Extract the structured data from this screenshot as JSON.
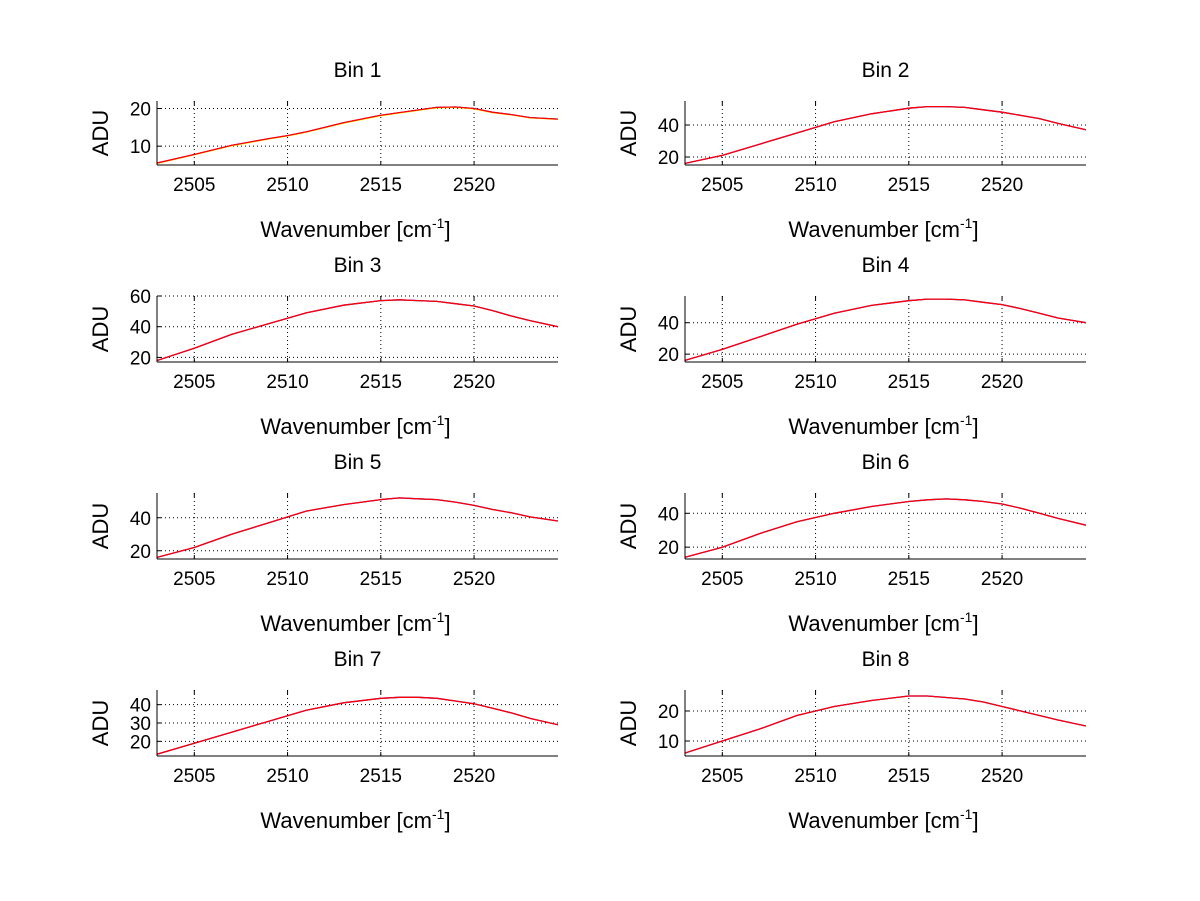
{
  "chart_data": [
    {
      "type": "line",
      "title": "Bin 1",
      "xlabel": "Wavenumber",
      "xlabel_unit": "cm",
      "xlabel_exp": "-1",
      "ylabel": "ADU",
      "xlim": [
        2503,
        2524.5
      ],
      "ylim": [
        5,
        22
      ],
      "xticks": [
        2505,
        2510,
        2515,
        2520
      ],
      "yticks": [
        10,
        20
      ],
      "grid": true,
      "series": [
        {
          "color": "#0000ff",
          "x": [
            2503,
            2505,
            2507,
            2509,
            2510,
            2511,
            2513,
            2515,
            2517,
            2518,
            2519,
            2520,
            2521,
            2522,
            2523,
            2524.5
          ],
          "y": [
            5.5,
            7.8,
            10.2,
            12,
            12.8,
            13.8,
            16.2,
            18.2,
            19.6,
            20.3,
            20.4,
            20,
            19,
            18.4,
            17.6,
            17.2
          ]
        },
        {
          "color": "#ffff00",
          "x": [
            2503,
            2505,
            2507,
            2509,
            2510,
            2511,
            2513,
            2515,
            2517,
            2518,
            2519,
            2520,
            2521,
            2522,
            2523,
            2524.5
          ],
          "y": [
            5.4,
            7.7,
            10.1,
            11.9,
            12.7,
            13.7,
            16.1,
            18.1,
            19.5,
            20.2,
            20.3,
            19.9,
            18.9,
            18.3,
            17.5,
            17.1
          ]
        },
        {
          "color": "#ff0000",
          "x": [
            2503,
            2505,
            2507,
            2509,
            2510,
            2511,
            2513,
            2515,
            2517,
            2518,
            2519,
            2520,
            2521,
            2522,
            2523,
            2524.5
          ],
          "y": [
            5.5,
            7.8,
            10.2,
            12,
            12.8,
            13.8,
            16.2,
            18.2,
            19.6,
            20.3,
            20.4,
            20,
            19,
            18.4,
            17.6,
            17.2
          ]
        }
      ]
    },
    {
      "type": "line",
      "title": "Bin 2",
      "xlabel": "Wavenumber",
      "xlabel_unit": "cm",
      "xlabel_exp": "-1",
      "ylabel": "ADU",
      "xlim": [
        2503,
        2524.5
      ],
      "ylim": [
        15,
        55
      ],
      "xticks": [
        2505,
        2510,
        2515,
        2520
      ],
      "yticks": [
        20,
        40
      ],
      "grid": true,
      "series": [
        {
          "color": "#0000ff",
          "x": [
            2503,
            2505,
            2507,
            2509,
            2511,
            2513,
            2515,
            2516,
            2517,
            2518,
            2519,
            2520,
            2521,
            2522,
            2523,
            2524.5
          ],
          "y": [
            16,
            21,
            28,
            35,
            42,
            47,
            50.5,
            51.5,
            51.5,
            51,
            49.5,
            48,
            46,
            44,
            41,
            37
          ]
        },
        {
          "color": "#ff0000",
          "x": [
            2503,
            2505,
            2507,
            2509,
            2511,
            2513,
            2515,
            2516,
            2517,
            2518,
            2519,
            2520,
            2521,
            2522,
            2523,
            2524.5
          ],
          "y": [
            16,
            21,
            28,
            35,
            42,
            47,
            50.5,
            51.5,
            51.5,
            51,
            49.5,
            48,
            46,
            44,
            41,
            37
          ]
        }
      ]
    },
    {
      "type": "line",
      "title": "Bin 3",
      "xlabel": "Wavenumber",
      "xlabel_unit": "cm",
      "xlabel_exp": "-1",
      "ylabel": "ADU",
      "xlim": [
        2503,
        2524.5
      ],
      "ylim": [
        17,
        60
      ],
      "xticks": [
        2505,
        2510,
        2515,
        2520
      ],
      "yticks": [
        20,
        40,
        60
      ],
      "grid": true,
      "series": [
        {
          "color": "#0000ff",
          "x": [
            2503,
            2505,
            2507,
            2509,
            2511,
            2513,
            2515,
            2516,
            2517,
            2518,
            2519,
            2520,
            2521,
            2522,
            2523,
            2524.5
          ],
          "y": [
            18,
            26,
            35,
            42,
            49,
            54,
            57,
            57.5,
            57,
            56.5,
            55,
            53.5,
            50.5,
            47,
            44,
            40
          ]
        },
        {
          "color": "#ff0000",
          "x": [
            2503,
            2505,
            2507,
            2509,
            2511,
            2513,
            2515,
            2516,
            2517,
            2518,
            2519,
            2520,
            2521,
            2522,
            2523,
            2524.5
          ],
          "y": [
            18,
            26,
            35,
            42,
            49,
            54,
            57,
            57.5,
            57,
            56.5,
            55,
            53.5,
            50.5,
            47,
            44,
            40
          ]
        }
      ]
    },
    {
      "type": "line",
      "title": "Bin 4",
      "xlabel": "Wavenumber",
      "xlabel_unit": "cm",
      "xlabel_exp": "-1",
      "ylabel": "ADU",
      "xlim": [
        2503,
        2524.5
      ],
      "ylim": [
        15,
        57
      ],
      "xticks": [
        2505,
        2510,
        2515,
        2520
      ],
      "yticks": [
        20,
        40
      ],
      "grid": true,
      "series": [
        {
          "color": "#0000ff",
          "x": [
            2503,
            2505,
            2507,
            2509,
            2511,
            2513,
            2515,
            2516,
            2517,
            2518,
            2519,
            2520,
            2521,
            2522,
            2523,
            2524.5
          ],
          "y": [
            16,
            23,
            31,
            39,
            46,
            51,
            54,
            55,
            55,
            54.5,
            53,
            51.5,
            49,
            46,
            43,
            40
          ]
        },
        {
          "color": "#ff0000",
          "x": [
            2503,
            2505,
            2507,
            2509,
            2511,
            2513,
            2515,
            2516,
            2517,
            2518,
            2519,
            2520,
            2521,
            2522,
            2523,
            2524.5
          ],
          "y": [
            16,
            23,
            31,
            39,
            46,
            51,
            54,
            55,
            55,
            54.5,
            53,
            51.5,
            49,
            46,
            43,
            40
          ]
        }
      ]
    },
    {
      "type": "line",
      "title": "Bin 5",
      "xlabel": "Wavenumber",
      "xlabel_unit": "cm",
      "xlabel_exp": "-1",
      "ylabel": "ADU",
      "xlim": [
        2503,
        2524.5
      ],
      "ylim": [
        15,
        55
      ],
      "xticks": [
        2505,
        2510,
        2515,
        2520
      ],
      "yticks": [
        20,
        40
      ],
      "grid": true,
      "series": [
        {
          "color": "#0000ff",
          "x": [
            2503,
            2505,
            2507,
            2509,
            2511,
            2513,
            2515,
            2516,
            2517,
            2518,
            2519,
            2520,
            2521,
            2522,
            2523,
            2524.5
          ],
          "y": [
            16,
            22,
            30,
            37,
            44,
            48,
            51,
            52,
            51.5,
            51,
            49.5,
            47.5,
            45,
            43,
            40.5,
            38
          ]
        },
        {
          "color": "#ff0000",
          "x": [
            2503,
            2505,
            2507,
            2509,
            2511,
            2513,
            2515,
            2516,
            2517,
            2518,
            2519,
            2520,
            2521,
            2522,
            2523,
            2524.5
          ],
          "y": [
            16,
            22,
            30,
            37,
            44,
            48,
            51,
            52,
            51.5,
            51,
            49.5,
            47.5,
            45,
            43,
            40.5,
            38
          ]
        }
      ]
    },
    {
      "type": "line",
      "title": "Bin 6",
      "xlabel": "Wavenumber",
      "xlabel_unit": "cm",
      "xlabel_exp": "-1",
      "ylabel": "ADU",
      "xlim": [
        2503,
        2524.5
      ],
      "ylim": [
        13,
        52
      ],
      "xticks": [
        2505,
        2510,
        2515,
        2520
      ],
      "yticks": [
        20,
        40
      ],
      "grid": true,
      "series": [
        {
          "color": "#0000ff",
          "x": [
            2503,
            2505,
            2507,
            2509,
            2511,
            2513,
            2515,
            2516,
            2517,
            2518,
            2519,
            2520,
            2521,
            2522,
            2523,
            2524.5
          ],
          "y": [
            14,
            20,
            28,
            35,
            40,
            44,
            47,
            48,
            48.5,
            48,
            47,
            45.5,
            43,
            40,
            37,
            33
          ]
        },
        {
          "color": "#ff0000",
          "x": [
            2503,
            2505,
            2507,
            2509,
            2511,
            2513,
            2515,
            2516,
            2517,
            2518,
            2519,
            2520,
            2521,
            2522,
            2523,
            2524.5
          ],
          "y": [
            14,
            20,
            28,
            35,
            40,
            44,
            47,
            48,
            48.5,
            48,
            47,
            45.5,
            43,
            40,
            37,
            33
          ]
        }
      ]
    },
    {
      "type": "line",
      "title": "Bin 7",
      "xlabel": "Wavenumber",
      "xlabel_unit": "cm",
      "xlabel_exp": "-1",
      "ylabel": "ADU",
      "xlim": [
        2503,
        2524.5
      ],
      "ylim": [
        12,
        48
      ],
      "xticks": [
        2505,
        2510,
        2515,
        2520
      ],
      "yticks": [
        20,
        30,
        40
      ],
      "grid": true,
      "series": [
        {
          "color": "#0000ff",
          "x": [
            2503,
            2505,
            2507,
            2509,
            2511,
            2513,
            2515,
            2516,
            2517,
            2518,
            2519,
            2520,
            2521,
            2522,
            2523,
            2524.5
          ],
          "y": [
            13,
            19,
            25,
            31,
            37,
            41,
            43.5,
            44,
            44,
            43.5,
            42,
            40.5,
            38,
            35.5,
            32.5,
            29
          ]
        },
        {
          "color": "#ff0000",
          "x": [
            2503,
            2505,
            2507,
            2509,
            2511,
            2513,
            2515,
            2516,
            2517,
            2518,
            2519,
            2520,
            2521,
            2522,
            2523,
            2524.5
          ],
          "y": [
            13,
            19,
            25,
            31,
            37,
            41,
            43.5,
            44,
            44,
            43.5,
            42,
            40.5,
            38,
            35.5,
            32.5,
            29
          ]
        }
      ]
    },
    {
      "type": "line",
      "title": "Bin 8",
      "xlabel": "Wavenumber",
      "xlabel_unit": "cm",
      "xlabel_exp": "-1",
      "ylabel": "ADU",
      "xlim": [
        2503,
        2524.5
      ],
      "ylim": [
        5,
        27
      ],
      "xticks": [
        2505,
        2510,
        2515,
        2520
      ],
      "yticks": [
        10,
        20
      ],
      "grid": true,
      "series": [
        {
          "color": "#0000ff",
          "x": [
            2503,
            2505,
            2507,
            2509,
            2511,
            2513,
            2515,
            2516,
            2517,
            2518,
            2519,
            2520,
            2521,
            2522,
            2523,
            2524.5
          ],
          "y": [
            6,
            10,
            14,
            18.5,
            21.5,
            23.5,
            25,
            25,
            24.5,
            24,
            23,
            21.5,
            20,
            18.5,
            17,
            15
          ]
        },
        {
          "color": "#ff0000",
          "x": [
            2503,
            2505,
            2507,
            2509,
            2511,
            2513,
            2515,
            2516,
            2517,
            2518,
            2519,
            2520,
            2521,
            2522,
            2523,
            2524.5
          ],
          "y": [
            6,
            10,
            14,
            18.5,
            21.5,
            23.5,
            25,
            25,
            24.5,
            24,
            23,
            21.5,
            20,
            18.5,
            17,
            15
          ]
        }
      ]
    }
  ]
}
